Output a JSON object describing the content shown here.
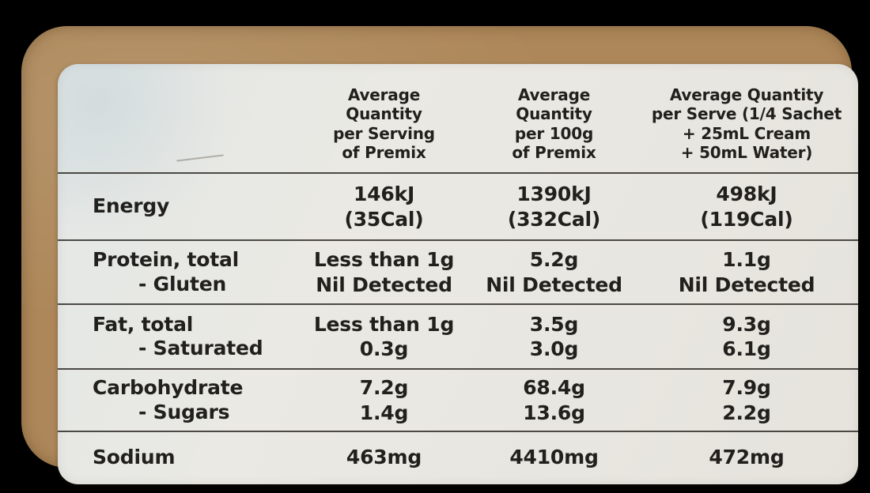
{
  "panel": {
    "type": "nutrition-information-panel",
    "columns": {
      "per_serving_header": "Average\nQuantity\nper Serving\nof Premix",
      "per_100g_header": "Average\nQuantity\nper 100g\nof Premix",
      "per_serve_header": "Average Quantity\nper Serve (1/4 Sachet\n+ 25mL Cream\n+ 50mL Water)"
    },
    "rows": [
      {
        "name": "Energy",
        "sub": "",
        "per_serving": "146kJ\n(35Cal)",
        "per_100g": "1390kJ\n(332Cal)",
        "per_serve": "498kJ\n(119Cal)"
      },
      {
        "name": "Protein, total",
        "sub": "- Gluten",
        "per_serving": "Less than 1g\nNil Detected",
        "per_100g": "5.2g\nNil Detected",
        "per_serve": "1.1g\nNil Detected"
      },
      {
        "name": "Fat, total",
        "sub": "- Saturated",
        "per_serving": "Less than 1g\n0.3g",
        "per_100g": "3.5g\n3.0g",
        "per_serve": "9.3g\n6.1g"
      },
      {
        "name": "Carbohydrate",
        "sub": "- Sugars",
        "per_serving": "7.2g\n1.4g",
        "per_100g": "68.4g\n13.6g",
        "per_serve": "7.9g\n2.2g"
      },
      {
        "name": "Sodium",
        "sub": "",
        "per_serving": "463mg",
        "per_100g": "4410mg",
        "per_serve": "472mg"
      }
    ],
    "colors": {
      "background": "#000000",
      "package_brown": "#ad8759",
      "label_cream": "#e9e7e1",
      "text": "#21201d",
      "divider": "#302d28"
    }
  }
}
